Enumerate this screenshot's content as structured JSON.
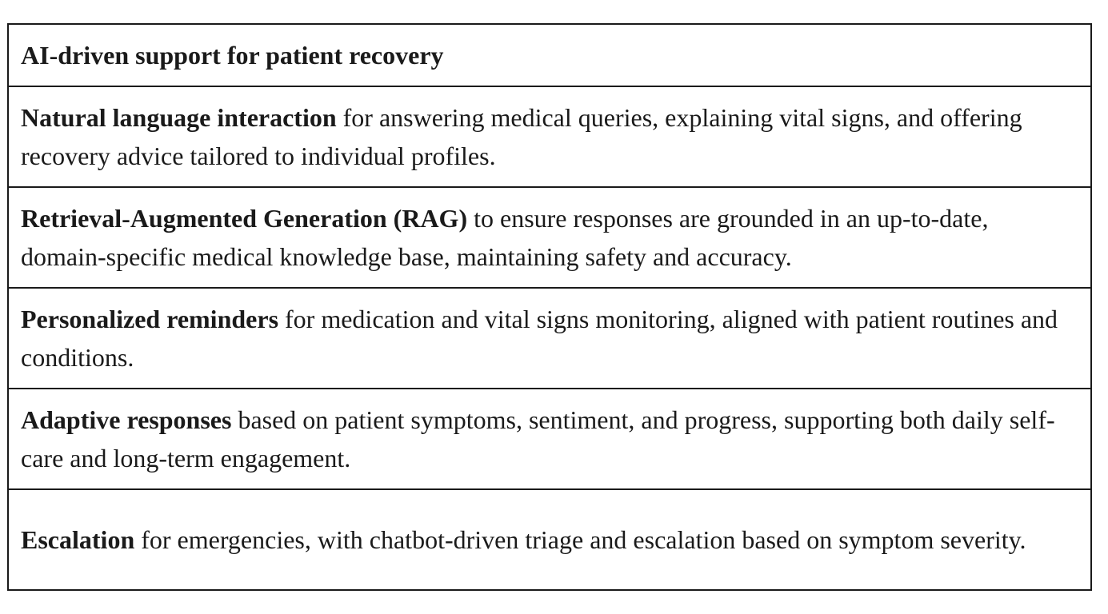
{
  "table": {
    "header": "AI-driven support for patient recovery",
    "rows": [
      {
        "term": "Natural language interaction",
        "text": " for answering medical queries, explaining vital signs, and offering recovery advice tailored to individual profiles."
      },
      {
        "term": "Retrieval-Augmented Generation (RAG)",
        "text": " to ensure responses are grounded in an up-to-date, domain-specific medical knowledge base, maintaining safety and accuracy."
      },
      {
        "term": "Personalized reminders",
        "text": " for medication and vital signs monitoring, aligned with patient routines and conditions."
      },
      {
        "term": "Adaptive responses",
        "text": " based on patient symptoms, sentiment, and progress, supporting both daily self-care and long-term engagement."
      },
      {
        "term": "Escalation",
        "text": " for emergencies, with chatbot-driven triage and escalation based on symptom severity."
      }
    ]
  }
}
